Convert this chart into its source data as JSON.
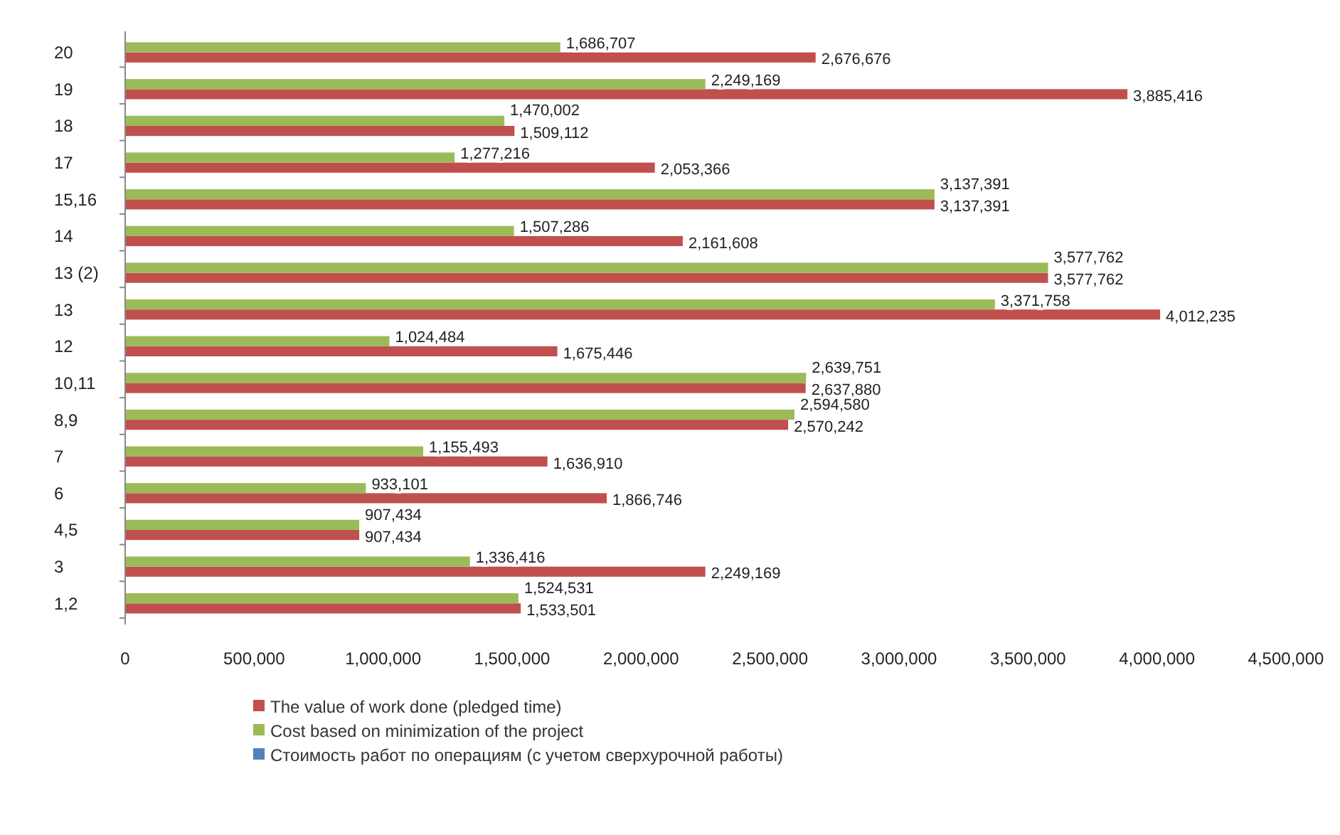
{
  "chart_data": {
    "type": "bar",
    "orientation": "horizontal",
    "categories": [
      "20",
      "19",
      "18",
      "17",
      "15,16",
      "14",
      "13 (2)",
      "13",
      "12",
      "10,11",
      "8,9",
      "7",
      "6",
      "4,5",
      "3",
      "1,2"
    ],
    "series": [
      {
        "name": "The value of work done (pledged time)",
        "color": "#c0504d",
        "values": [
          2676676,
          3885416,
          1509112,
          2053366,
          3137391,
          2161608,
          3577762,
          4012235,
          1675446,
          2637880,
          2570242,
          1636910,
          1866746,
          907434,
          2249169,
          1533501
        ],
        "value_labels": [
          "2,676,676",
          "3,885,416",
          "1,509,112",
          "2,053,366",
          "3,137,391",
          "2,161,608",
          "3,577,762",
          "4,012,235",
          "1,675,446",
          "2,637,880",
          "2,570,242",
          "1,636,910",
          "1,866,746",
          "907,434",
          "2,249,169",
          "1,533,501"
        ]
      },
      {
        "name": "Cost based on minimization of the project",
        "color": "#9bbb59",
        "values": [
          1686707,
          2249169,
          1470002,
          1277216,
          3137391,
          1507286,
          3577762,
          3371758,
          1024484,
          2639751,
          2594580,
          1155493,
          933101,
          907434,
          1336416,
          1524531
        ],
        "value_labels": [
          "1,686,707",
          "2,249,169",
          "1,470,002",
          "1,277,216",
          "3,137,391",
          "1,507,286",
          "3,577,762",
          "3,371,758",
          "1,024,484",
          "2,639,751",
          "2,594,580",
          "1,155,493",
          "933,101",
          "907,434",
          "1,336,416",
          "1,524,531"
        ]
      },
      {
        "name": "Стоимость работ по операциям (с учетом сверхурочной работы)",
        "color": "#4f81bd",
        "values": [
          null,
          null,
          null,
          null,
          null,
          null,
          null,
          null,
          null,
          null,
          null,
          null,
          null,
          null,
          null,
          null
        ]
      }
    ],
    "xlim": [
      0,
      4500000
    ],
    "xticks": [
      {
        "value": 0,
        "label": "0"
      },
      {
        "value": 500000,
        "label": "500,000"
      },
      {
        "value": 1000000,
        "label": "1,000,000"
      },
      {
        "value": 1500000,
        "label": "1,500,000"
      },
      {
        "value": 2000000,
        "label": "2,000,000"
      },
      {
        "value": 2500000,
        "label": "2,500,000"
      },
      {
        "value": 3000000,
        "label": "3,000,000"
      },
      {
        "value": 3500000,
        "label": "3,500,000"
      },
      {
        "value": 4000000,
        "label": "4,000,000"
      },
      {
        "value": 4500000,
        "label": "4,500,000"
      }
    ],
    "legend": "bottom",
    "grid": false
  }
}
